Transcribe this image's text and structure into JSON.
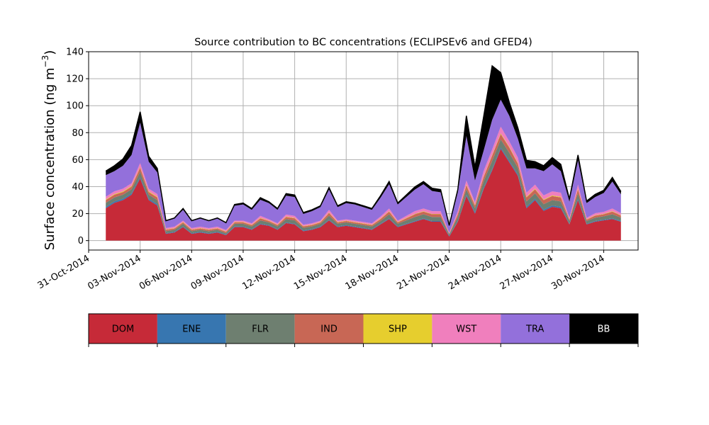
{
  "chart_data": {
    "type": "area",
    "title": "Source contribution to BC concentrations (ECLIPSEv6 and GFED4)",
    "xlabel": "",
    "ylabel_main": "Surface concentration (ng m",
    "ylabel_sup": "−3",
    "ylabel_close": ")",
    "ylim": [
      -7,
      140
    ],
    "xlim": [
      "2014-10-31",
      "2014-12-02"
    ],
    "grid": true,
    "stacked": true,
    "y_ticks": [
      0,
      20,
      40,
      60,
      80,
      100,
      120,
      140
    ],
    "x_ticks": [
      "31-Oct-2014",
      "03-Nov-2014",
      "06-Nov-2014",
      "09-Nov-2014",
      "12-Nov-2014",
      "15-Nov-2014",
      "18-Nov-2014",
      "21-Nov-2014",
      "24-Nov-2014",
      "27-Nov-2014",
      "30-Nov-2014"
    ],
    "x_tick_dates": [
      "2014-10-31",
      "2014-11-03",
      "2014-11-06",
      "2014-11-09",
      "2014-11-12",
      "2014-11-15",
      "2014-11-18",
      "2014-11-21",
      "2014-11-24",
      "2014-11-27",
      "2014-11-30"
    ],
    "x": [
      "2014-11-01",
      "2014-11-01T12:00",
      "2014-11-02",
      "2014-11-02T12:00",
      "2014-11-03",
      "2014-11-03T12:00",
      "2014-11-04",
      "2014-11-04T12:00",
      "2014-11-05",
      "2014-11-05T12:00",
      "2014-11-06",
      "2014-11-06T12:00",
      "2014-11-07",
      "2014-11-07T12:00",
      "2014-11-08",
      "2014-11-08T12:00",
      "2014-11-09",
      "2014-11-09T12:00",
      "2014-11-10",
      "2014-11-10T12:00",
      "2014-11-11",
      "2014-11-11T12:00",
      "2014-11-12",
      "2014-11-12T12:00",
      "2014-11-13",
      "2014-11-13T12:00",
      "2014-11-14",
      "2014-11-14T12:00",
      "2014-11-15",
      "2014-11-15T12:00",
      "2014-11-16",
      "2014-11-16T12:00",
      "2014-11-17",
      "2014-11-17T12:00",
      "2014-11-18",
      "2014-11-18T12:00",
      "2014-11-19",
      "2014-11-19T12:00",
      "2014-11-20",
      "2014-11-20T12:00",
      "2014-11-21",
      "2014-11-21T12:00",
      "2014-11-22",
      "2014-11-22T12:00",
      "2014-11-23",
      "2014-11-23T12:00",
      "2014-11-24",
      "2014-11-24T12:00",
      "2014-11-25",
      "2014-11-25T12:00",
      "2014-11-26",
      "2014-11-26T12:00",
      "2014-11-27",
      "2014-11-27T12:00",
      "2014-11-28",
      "2014-11-28T12:00",
      "2014-11-29",
      "2014-11-29T12:00",
      "2014-11-30",
      "2014-11-30T12:00",
      "2014-12-01"
    ],
    "series": [
      {
        "name": "DOM",
        "color": "#c62a38",
        "values": [
          24,
          28,
          30,
          34,
          46,
          30,
          26,
          5,
          6,
          10,
          5,
          6,
          5,
          6,
          4,
          10,
          10,
          8,
          12,
          11,
          8,
          13,
          12,
          7,
          8,
          10,
          15,
          10,
          11,
          10,
          9,
          8,
          12,
          16,
          10,
          12,
          14,
          16,
          14,
          14,
          3,
          14,
          33,
          20,
          38,
          52,
          68,
          58,
          48,
          24,
          30,
          22,
          25,
          24,
          12,
          30,
          12,
          14,
          15,
          16,
          14
        ]
      },
      {
        "name": "ENE",
        "color": "#3776b0",
        "values": [
          1,
          1,
          1,
          1,
          1,
          1,
          1,
          0.5,
          0.5,
          0.5,
          0.5,
          0.5,
          0.5,
          0.5,
          0.5,
          0.5,
          0.5,
          0.5,
          0.5,
          0.5,
          0.5,
          0.5,
          0.5,
          0.5,
          0.5,
          0.5,
          0.5,
          0.5,
          0.5,
          0.5,
          0.5,
          0.5,
          0.5,
          0.5,
          0.5,
          0.5,
          0.5,
          0.5,
          0.5,
          0.5,
          0.5,
          0.5,
          1,
          1,
          1,
          1,
          1,
          1,
          1,
          1,
          1,
          1,
          1,
          1,
          0.5,
          1,
          0.5,
          0.5,
          0.5,
          0.5,
          0.5
        ]
      },
      {
        "name": "FLR",
        "color": "#6e7f70",
        "values": [
          3,
          3,
          3,
          3,
          4,
          3,
          3,
          1.5,
          1.5,
          2,
          1.5,
          1.5,
          1.5,
          1.5,
          1,
          2,
          2,
          2,
          2.5,
          2,
          2,
          2.5,
          2.5,
          2,
          2,
          2,
          3,
          2,
          2,
          2,
          2,
          2,
          2,
          3,
          2,
          2.5,
          3,
          3,
          3,
          3,
          1,
          3,
          4,
          3,
          5,
          6,
          6,
          6,
          5,
          4,
          4,
          4,
          4,
          4,
          2,
          4,
          2,
          2.5,
          2.5,
          3,
          2.5
        ]
      },
      {
        "name": "IND",
        "color": "#c86755",
        "values": [
          2,
          2,
          2,
          2,
          3,
          2,
          2,
          1,
          1,
          1,
          1,
          1,
          1,
          1,
          1,
          1,
          1,
          1,
          1.5,
          1,
          1,
          1.5,
          1.5,
          1,
          1,
          1,
          2,
          1,
          1,
          1,
          1,
          1,
          1.5,
          2,
          1,
          1.5,
          2,
          2,
          2,
          2,
          0.5,
          2,
          3,
          2,
          3,
          4,
          4,
          4,
          3,
          3,
          3,
          3,
          3,
          3,
          1,
          3,
          1,
          1.5,
          1.5,
          2,
          1.5
        ]
      },
      {
        "name": "SHP",
        "color": "#e6ce2e",
        "values": [
          0.5,
          0.5,
          0.5,
          0.5,
          0.5,
          0.5,
          0.5,
          0.3,
          0.3,
          0.3,
          0.3,
          0.3,
          0.3,
          0.3,
          0.3,
          0.3,
          0.3,
          0.3,
          0.3,
          0.3,
          0.3,
          0.3,
          0.3,
          0.3,
          0.3,
          0.3,
          0.3,
          0.3,
          0.3,
          0.3,
          0.3,
          0.3,
          0.3,
          0.3,
          0.3,
          0.3,
          0.3,
          0.3,
          0.3,
          0.3,
          0.3,
          0.3,
          0.5,
          0.5,
          0.5,
          0.5,
          0.5,
          0.5,
          0.5,
          0.5,
          0.5,
          0.5,
          0.5,
          0.5,
          0.3,
          0.5,
          0.3,
          0.3,
          0.3,
          0.3,
          0.3
        ]
      },
      {
        "name": "WST",
        "color": "#f07fbd",
        "values": [
          2,
          2,
          2,
          2,
          3,
          2,
          2,
          1,
          1,
          1,
          1,
          1,
          1,
          1,
          1,
          1,
          1,
          1,
          1.5,
          1,
          1,
          1.5,
          1.5,
          1,
          1,
          1,
          2,
          1,
          1,
          1,
          1,
          1,
          1.5,
          2,
          1,
          1.5,
          2,
          2,
          2,
          2,
          0.5,
          2,
          3,
          2,
          4,
          4,
          5,
          4,
          4,
          3,
          3,
          3,
          3,
          3,
          1,
          3,
          1,
          1.5,
          1.5,
          2,
          1.5
        ]
      },
      {
        "name": "TRA",
        "color": "#9370db",
        "values": [
          16,
          15,
          17,
          21,
          30,
          20,
          16,
          5,
          6,
          8,
          5,
          6,
          5,
          6,
          5,
          11,
          12,
          10,
          12,
          12,
          10,
          14,
          14,
          8,
          9,
          10,
          15,
          10,
          12,
          12,
          11,
          10,
          14,
          18,
          12,
          14,
          16,
          18,
          15,
          14,
          5,
          14,
          33,
          16,
          15,
          22,
          20,
          19,
          14,
          18,
          12,
          18,
          20,
          16,
          12,
          18,
          11,
          12,
          14,
          20,
          14
        ]
      },
      {
        "name": "BB",
        "color": "#000000",
        "values": [
          3,
          4,
          5,
          7,
          8,
          4,
          3,
          0.5,
          0.5,
          1,
          0.5,
          0.5,
          0.5,
          0.5,
          0.5,
          1,
          1,
          1,
          1.5,
          1,
          1,
          1.5,
          1.5,
          1,
          1,
          1,
          1.5,
          1,
          1,
          1,
          1,
          1,
          1.5,
          2,
          1,
          1.5,
          2,
          2,
          2,
          2,
          0.5,
          2,
          15,
          10,
          25,
          40,
          20,
          10,
          8,
          6,
          5,
          4,
          5,
          5,
          2,
          4,
          1.5,
          2,
          2,
          3,
          2
        ]
      }
    ],
    "legend_placement": "bottom colorbar",
    "legend": [
      "DOM",
      "ENE",
      "FLR",
      "IND",
      "SHP",
      "WST",
      "TRA",
      "BB"
    ],
    "legend_text_colors": [
      "#000000",
      "#000000",
      "#000000",
      "#000000",
      "#000000",
      "#000000",
      "#000000",
      "#ffffff"
    ],
    "grid_color": "#b0b0b0"
  }
}
